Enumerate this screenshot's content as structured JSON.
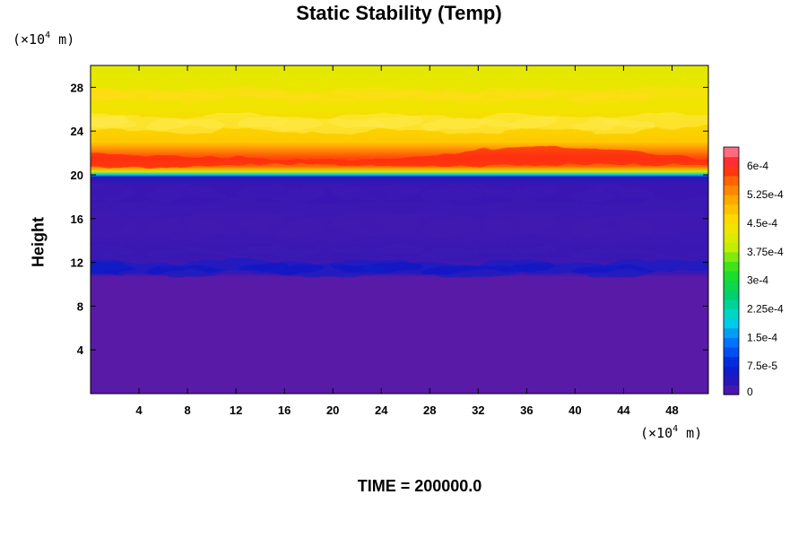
{
  "chart_data": {
    "type": "heatmap",
    "title": "Static Stability (Temp)",
    "ylabel": "Height",
    "xlabel": "",
    "x_unit": {
      "prefix": "(×10",
      "exp": "4",
      "suffix": " m)"
    },
    "y_unit": {
      "prefix": "(×10",
      "exp": "4",
      "suffix": " m)"
    },
    "footer": "TIME = 200000.0",
    "xlim": [
      0,
      51
    ],
    "ylim": [
      0,
      30
    ],
    "x_ticks": [
      4,
      8,
      12,
      16,
      20,
      24,
      28,
      32,
      36,
      40,
      44,
      48
    ],
    "y_ticks": [
      4,
      8,
      12,
      16,
      20,
      24,
      28
    ],
    "colorbar": {
      "labels": [
        "0",
        "7.5e-5",
        "1.5e-4",
        "2.25e-4",
        "3e-4",
        "3.75e-4",
        "4.5e-4",
        "5.25e-4",
        "6e-4"
      ],
      "values": [
        0,
        7.5e-05,
        0.00015,
        0.000225,
        0.0003,
        0.000375,
        0.00045,
        0.000525,
        0.0006
      ],
      "range": [
        0,
        0.00065
      ]
    },
    "field_description_rows": [
      {
        "height": 30,
        "value": 0.00042
      },
      {
        "height": 26,
        "value": 0.00044
      },
      {
        "height": 23,
        "value": 0.00048
      },
      {
        "height": 21.5,
        "value": 0.00058
      },
      {
        "height": 20.8,
        "value": 0.00056
      },
      {
        "height": 20.3,
        "value": 0.0004
      },
      {
        "height": 20.0,
        "value": 0.00018
      },
      {
        "height": 19.8,
        "value": 4e-05
      },
      {
        "height": 19.0,
        "value": 2e-05
      },
      {
        "height": 11.0,
        "value": 2e-05
      },
      {
        "height": 10.6,
        "value": 0.0
      },
      {
        "height": 0,
        "value": 0.0
      }
    ]
  }
}
